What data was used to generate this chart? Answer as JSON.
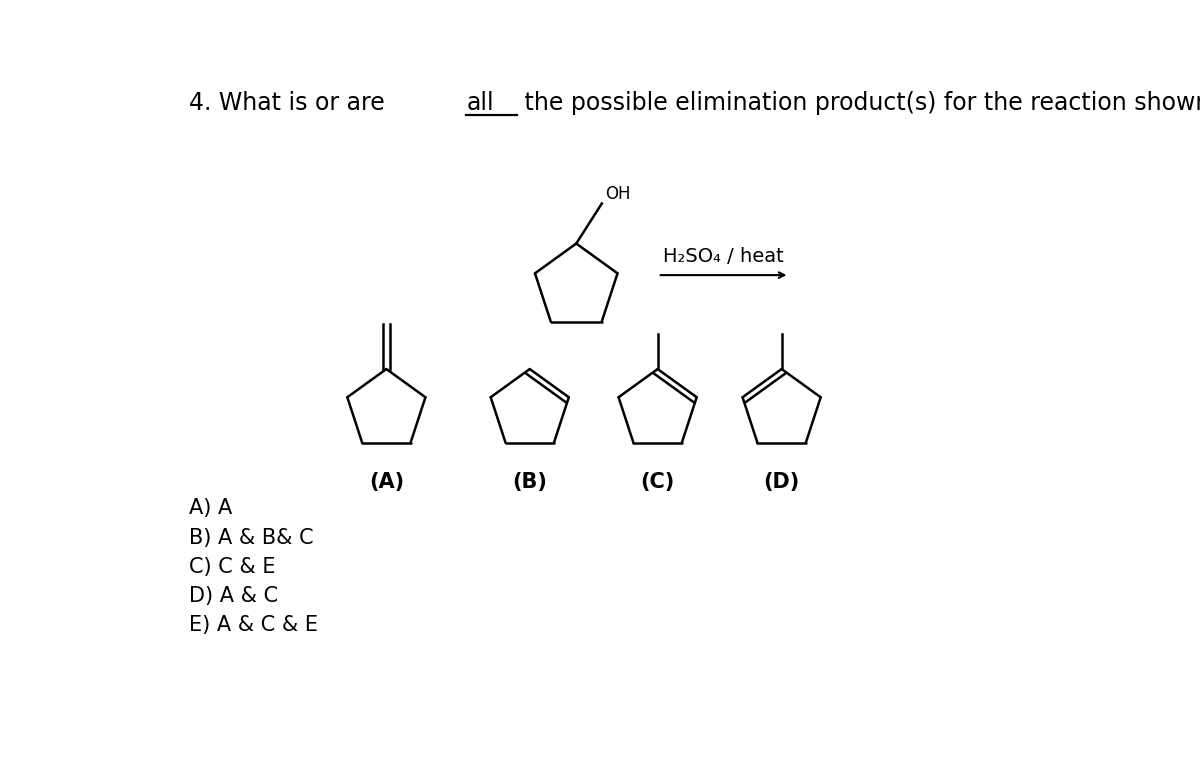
{
  "bg_color": "#ffffff",
  "answer_choices": [
    "A) A",
    "B) A & B& C",
    "C) C & E",
    "D) A & C",
    "E) A & C & E"
  ],
  "answer_fontsize": 15,
  "label_fontsize": 15,
  "title_fontsize": 17,
  "reagent_label": "H₂SO₄ / heat",
  "reagent_fontsize": 14
}
